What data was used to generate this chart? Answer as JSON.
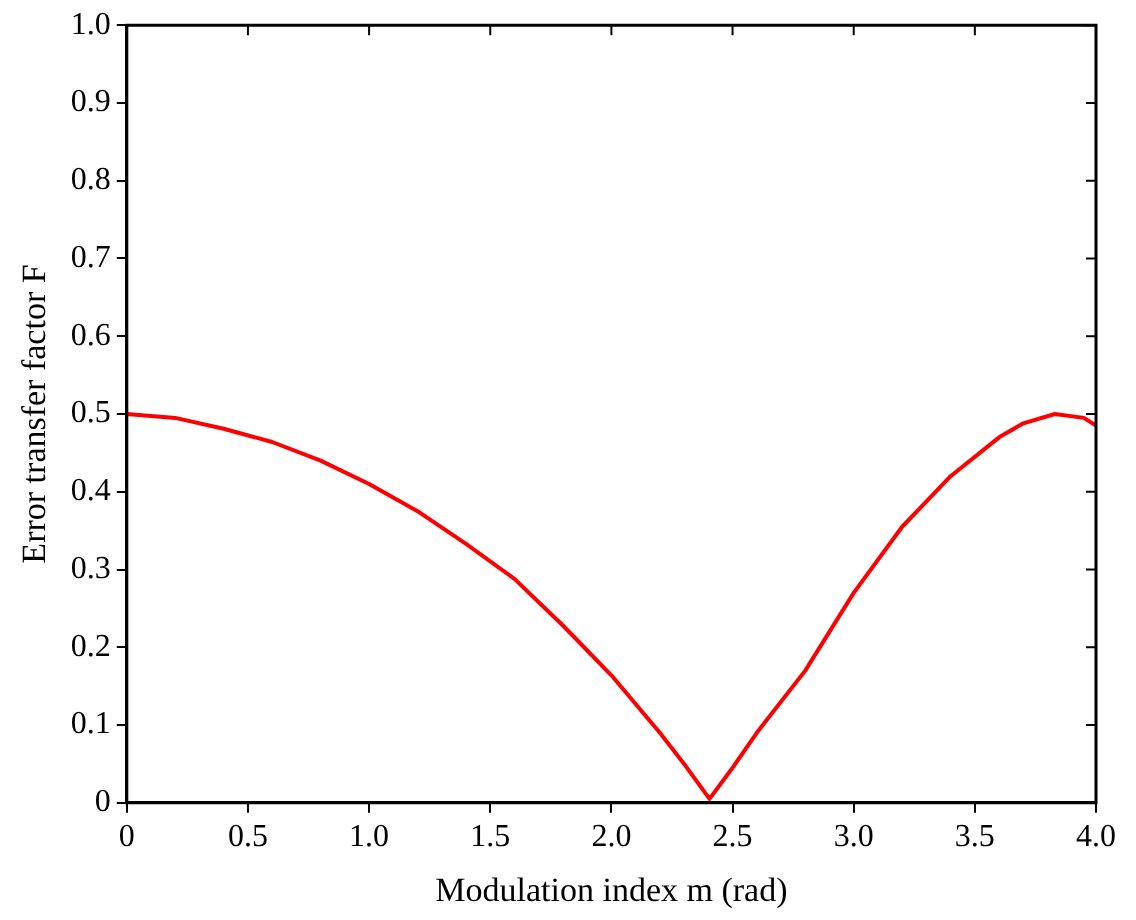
{
  "chart_data": {
    "type": "line",
    "xlabel": "Modulation index m (rad)",
    "ylabel": "Error transfer factor F",
    "x": [
      0,
      0.2,
      0.4,
      0.6,
      0.8,
      1.0,
      1.2,
      1.4,
      1.6,
      1.8,
      2.0,
      2.2,
      2.3,
      2.405,
      2.5,
      2.6,
      2.8,
      3.0,
      3.2,
      3.4,
      3.6,
      3.7,
      3.83,
      3.95,
      4.0
    ],
    "series": [
      {
        "color": "#ff0000",
        "values": [
          0.5,
          0.495,
          0.481,
          0.464,
          0.44,
          0.41,
          0.375,
          0.333,
          0.288,
          0.228,
          0.164,
          0.09,
          0.05,
          0.005,
          0.045,
          0.09,
          0.17,
          0.27,
          0.355,
          0.42,
          0.47,
          0.488,
          0.5,
          0.495,
          0.485
        ]
      }
    ],
    "xlim": [
      0,
      4
    ],
    "xticks": [
      0,
      0.5,
      {
        "value": 1,
        "label": "1.0"
      },
      1.5,
      {
        "value": 2,
        "label": "2.0"
      },
      2.5,
      {
        "value": 3,
        "label": "3.0"
      },
      3.5,
      {
        "value": 4,
        "label": "4.0"
      }
    ],
    "ylim": [
      0,
      1
    ],
    "yticks": [
      0,
      0.1,
      0.2,
      0.3,
      0.4,
      0.5,
      0.6,
      0.7,
      0.8,
      0.9,
      {
        "value": 1,
        "label": "1.0"
      }
    ],
    "grid": false,
    "legend": false,
    "marker": "none",
    "line_style": "solid"
  }
}
